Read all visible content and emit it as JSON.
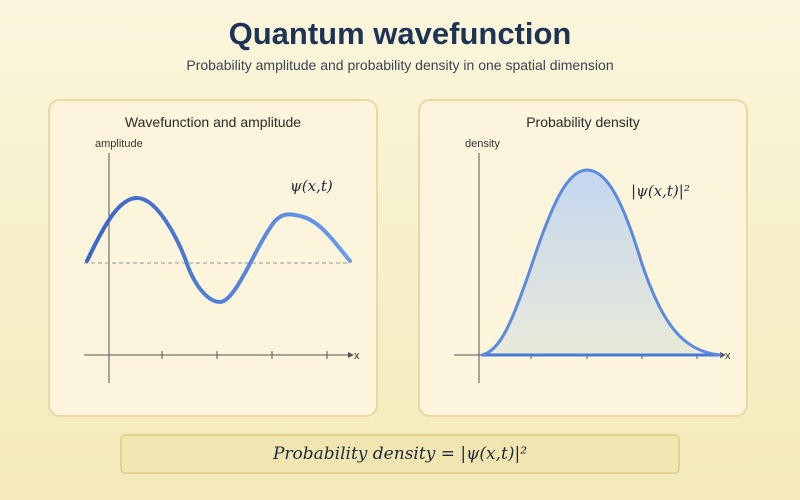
{
  "header": {
    "title": "Quantum wavefunction",
    "subtitle": "Probability amplitude and probability density in one spatial dimension"
  },
  "left_panel": {
    "title": "Wavefunction and amplitude",
    "y_axis_label": "amplitude",
    "x_axis_label": "x",
    "curve_label": "ψ(x,t)",
    "curve_color": "#3d6fd6"
  },
  "right_panel": {
    "title": "Probability density",
    "y_axis_label": "density",
    "x_axis_label": "x",
    "curve_label": "|ψ(x,t)|²",
    "curve_color": "#5b8ae0",
    "fill_top_color": "#c4d6ef",
    "fill_bottom_color": "#e9ead8"
  },
  "formula": {
    "text": "Probability density = |ψ(x,t)|²"
  }
}
